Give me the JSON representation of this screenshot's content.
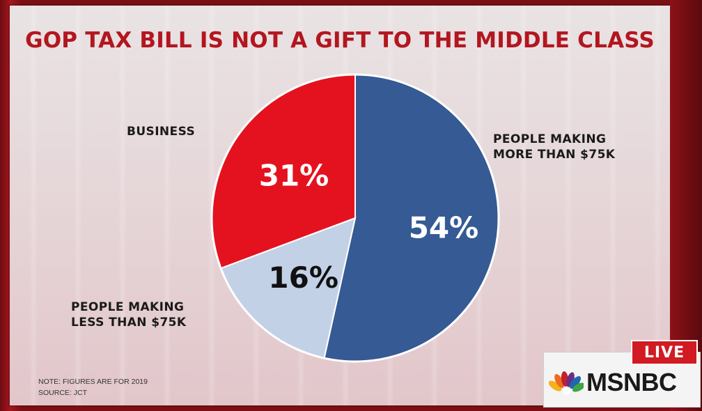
{
  "title": "GOP TAX BILL IS NOT A GIFT TO THE MIDDLE CLASS",
  "chart_data": {
    "type": "pie",
    "title": "GOP TAX BILL IS NOT A GIFT TO THE MIDDLE CLASS",
    "slices": [
      {
        "label_lines": [
          "PEOPLE MAKING",
          "MORE THAN $75K"
        ],
        "value": 54,
        "value_label": "54%",
        "color": "#355a94",
        "text_color": "#ffffff"
      },
      {
        "label_lines": [
          "PEOPLE MAKING",
          "LESS THAN $75K"
        ],
        "value": 16,
        "value_label": "16%",
        "color": "#c3d1e6",
        "text_color": "#111111"
      },
      {
        "label_lines": [
          "BUSINESS"
        ],
        "value": 31,
        "value_label": "31%",
        "color": "#e4121f",
        "text_color": "#ffffff"
      }
    ]
  },
  "note": {
    "line1": "NOTE: FIGURES ARE FOR 2019",
    "line2": "SOURCE: JCT"
  },
  "network": {
    "live_label": "LIVE",
    "name": "MSNBC",
    "logo_icon": "peacock-icon",
    "live_color": "#d11a22"
  }
}
